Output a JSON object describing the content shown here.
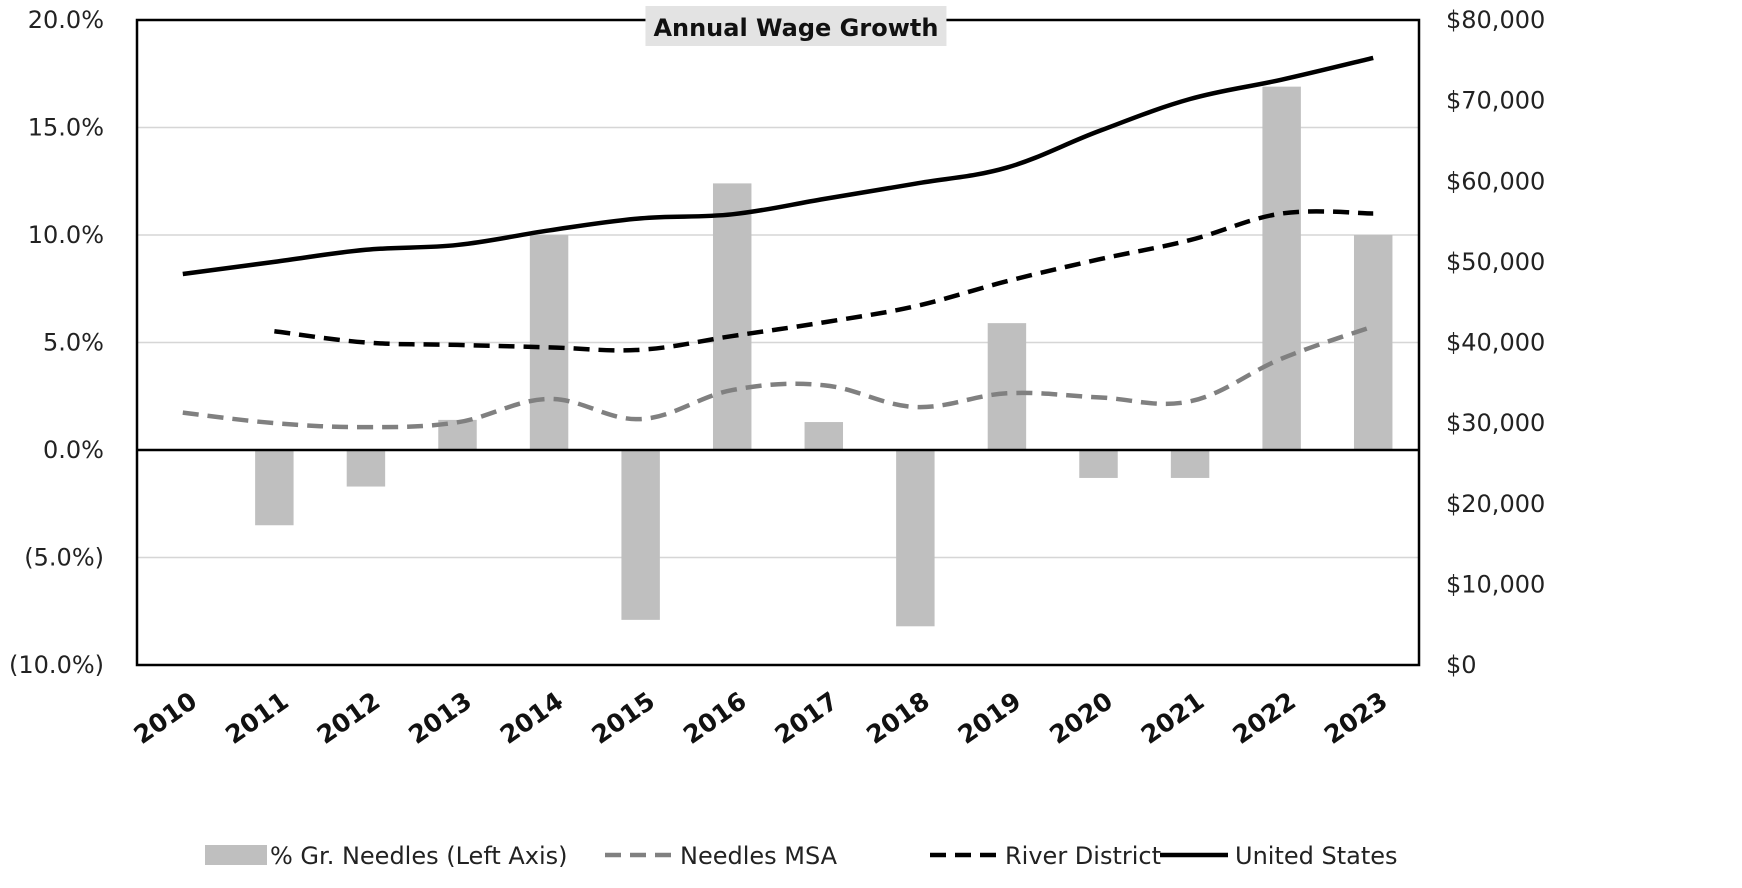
{
  "chart_data": {
    "type": "bar+line",
    "title": "Annual Wage Growth",
    "categories": [
      "2010",
      "2011",
      "2012",
      "2013",
      "2014",
      "2015",
      "2016",
      "2017",
      "2018",
      "2019",
      "2020",
      "2021",
      "2022",
      "2023"
    ],
    "left_axis": {
      "ylim": [
        -10,
        20
      ],
      "ticks": [
        -10,
        -5,
        0,
        5,
        10,
        15,
        20
      ],
      "tick_labels": [
        "(10.0%)",
        "(5.0%)",
        "0.0%",
        "5.0%",
        "10.0%",
        "15.0%",
        "20.0%"
      ]
    },
    "right_axis": {
      "ylim": [
        0,
        80000
      ],
      "ticks": [
        0,
        10000,
        20000,
        30000,
        40000,
        50000,
        60000,
        70000,
        80000
      ],
      "tick_labels": [
        "$0",
        "$10,000",
        "$20,000",
        "$30,000",
        "$40,000",
        "$50,000",
        "$60,000",
        "$70,000",
        "$80,000"
      ]
    },
    "grid": true,
    "legend_position": "bottom",
    "series": [
      {
        "name": "% Gr. Needles (Left Axis)",
        "kind": "bar",
        "axis": "left",
        "color": "#bfbfbf",
        "values": [
          null,
          -3.5,
          -1.7,
          1.4,
          10.0,
          -7.9,
          12.4,
          1.3,
          -8.2,
          5.9,
          -1.3,
          -1.3,
          16.9,
          10.0
        ]
      },
      {
        "name": "Needles MSA",
        "kind": "line",
        "style": "dashed",
        "axis": "right",
        "color": "#808080",
        "values": [
          31300,
          30000,
          29500,
          30100,
          33000,
          30500,
          34100,
          34700,
          32000,
          33700,
          33200,
          32700,
          38000,
          42000
        ]
      },
      {
        "name": "River District",
        "kind": "line",
        "style": "dashed",
        "axis": "right",
        "color": "#000000",
        "values": [
          null,
          41400,
          40000,
          39700,
          39400,
          39100,
          40800,
          42500,
          44500,
          47600,
          50300,
          52700,
          56000,
          56000
        ]
      },
      {
        "name": "United States",
        "kind": "line",
        "style": "solid",
        "axis": "right",
        "color": "#000000",
        "values": [
          48500,
          50000,
          51500,
          52100,
          53900,
          55400,
          55900,
          57800,
          59700,
          61700,
          66200,
          70200,
          72600,
          75300
        ]
      }
    ]
  }
}
